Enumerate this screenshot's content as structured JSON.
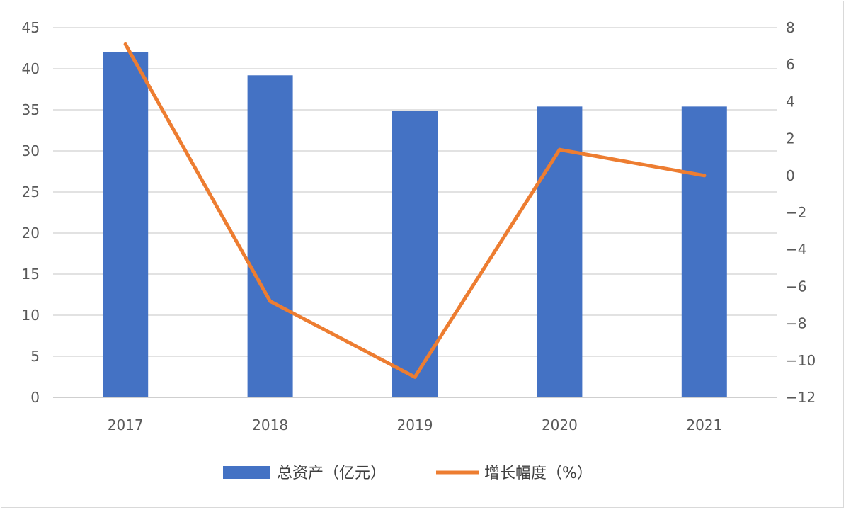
{
  "chart_data": {
    "type": "bar",
    "categories": [
      "2017",
      "2018",
      "2019",
      "2020",
      "2021"
    ],
    "series": [
      {
        "name": "总资产（亿元）",
        "type": "bar",
        "axis": "left",
        "color": "#4472C4",
        "values": [
          42.0,
          39.2,
          34.9,
          35.4,
          35.4
        ]
      },
      {
        "name": "增长幅度（%）",
        "type": "line",
        "axis": "right",
        "color": "#ED7D31",
        "values": [
          7.1,
          -6.8,
          -10.9,
          1.4,
          0.0
        ]
      }
    ],
    "y_left": {
      "min": 0,
      "max": 45,
      "step": 5,
      "ticks": [
        "0",
        "5",
        "10",
        "15",
        "20",
        "25",
        "30",
        "35",
        "40",
        "45"
      ]
    },
    "y_right": {
      "min": -12,
      "max": 8,
      "step": 2,
      "ticks": [
        "−12",
        "−10",
        "−8",
        "−6",
        "−4",
        "−2",
        "0",
        "2",
        "4",
        "6",
        "8"
      ]
    },
    "grid": true,
    "legend_position": "bottom"
  }
}
